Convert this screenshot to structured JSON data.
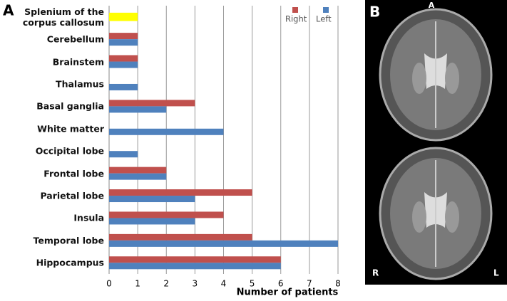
{
  "chart_data": {
    "type": "barh",
    "categories": [
      "Splenium of the corpus callosum",
      "Cerebellum",
      "Brainstem",
      "Thalamus",
      "Basal ganglia",
      "White matter",
      "Occipital lobe",
      "Frontal lobe",
      "Parietal lobe",
      "Insula",
      "Temporal lobe",
      "Hippocampus"
    ],
    "series": [
      {
        "name": "Right",
        "color": "#c0504d",
        "values": [
          null,
          1,
          1,
          0,
          3,
          0,
          0,
          2,
          5,
          4,
          5,
          6
        ]
      },
      {
        "name": "Left",
        "color": "#4f81bd",
        "values": [
          null,
          1,
          1,
          1,
          2,
          4,
          1,
          2,
          3,
          3,
          8,
          6
        ]
      },
      {
        "color": "#ffff00",
        "values": [
          1,
          null,
          null,
          null,
          null,
          null,
          null,
          null,
          null,
          null,
          null,
          null
        ]
      }
    ],
    "xlabel": "Number of patients",
    "xlim": [
      0,
      8
    ],
    "xticks": [
      0,
      1,
      2,
      3,
      4,
      5,
      6,
      7,
      8
    ],
    "grid": true,
    "legend": "top-right"
  },
  "figure": {
    "panel_a": "A",
    "panel_b": "B",
    "mri_labels": {
      "top": "A",
      "right_side": "R",
      "left_side": "L"
    }
  }
}
